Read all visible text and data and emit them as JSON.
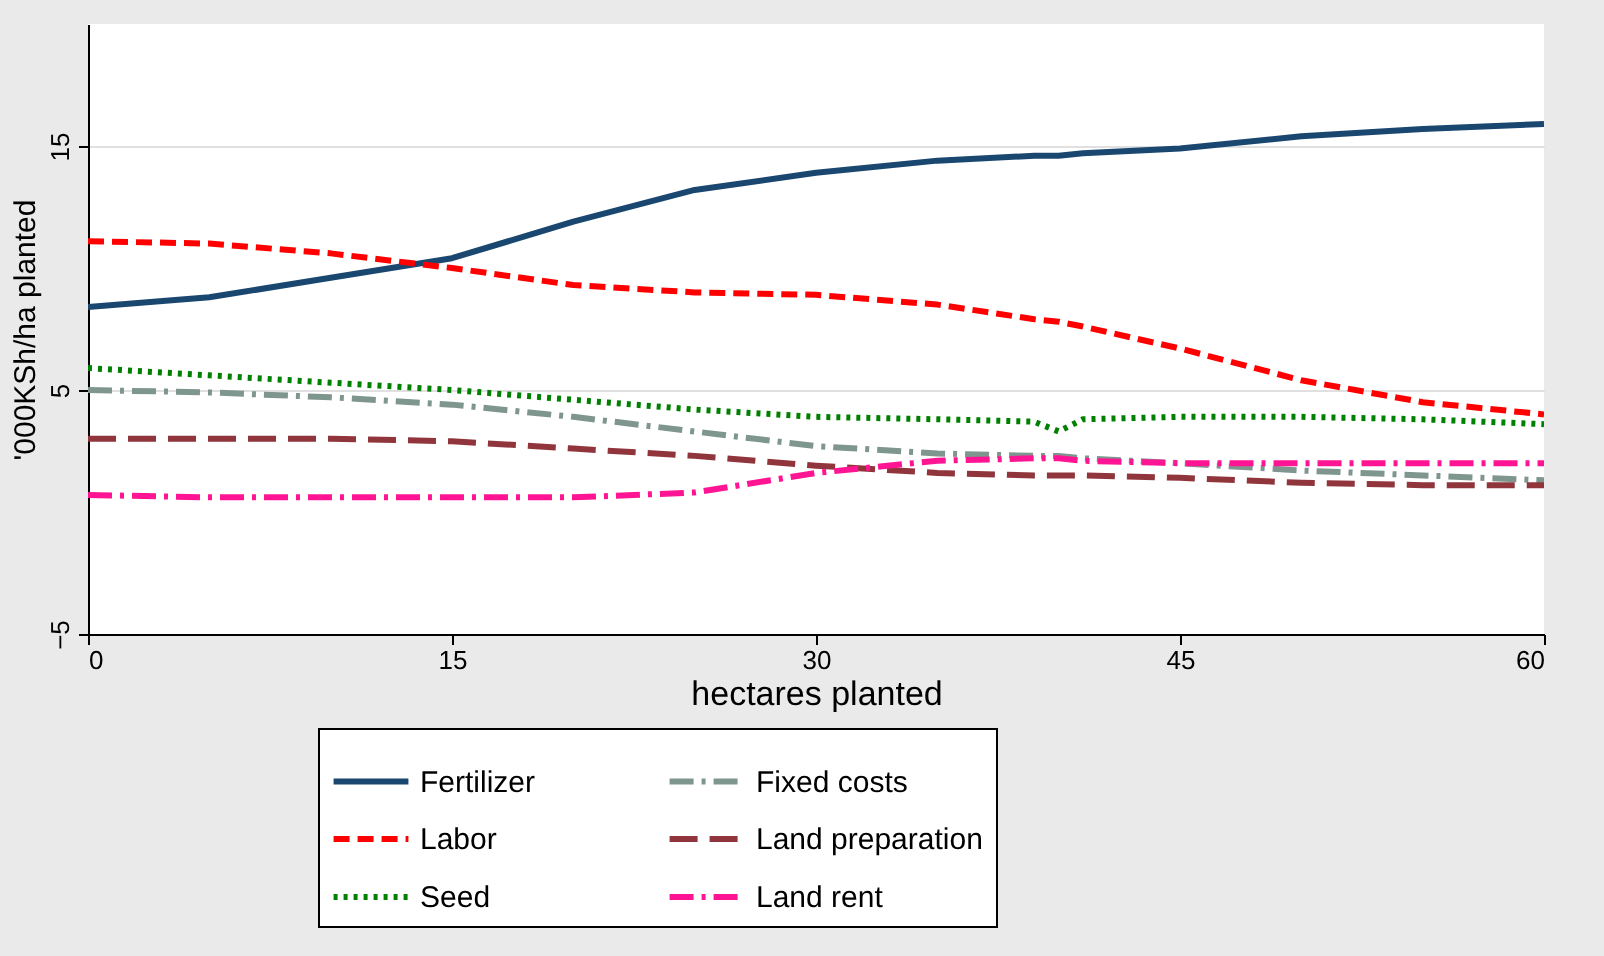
{
  "chart_data": {
    "type": "line",
    "xlabel": "hectares planted",
    "ylabel": "'000KSh/ha planted",
    "x": [
      0,
      5,
      10,
      15,
      20,
      25,
      30,
      35,
      39,
      40,
      41,
      45,
      50,
      55,
      60
    ],
    "series": [
      {
        "name": "Fertilizer",
        "color": "#1a476f",
        "line_style": "solid",
        "values": [
          8.4,
          8.8,
          9.6,
          10.4,
          11.9,
          13.2,
          13.9,
          14.4,
          14.6,
          14.6,
          14.7,
          14.9,
          15.4,
          15.7,
          15.9
        ]
      },
      {
        "name": "Labor",
        "color": "#ff0000",
        "line_style": "dashed",
        "values": [
          11.1,
          11.0,
          10.6,
          10.0,
          9.3,
          9.0,
          8.9,
          8.5,
          7.9,
          7.8,
          7.6,
          6.7,
          5.4,
          4.5,
          4.0
        ]
      },
      {
        "name": "Seed",
        "color": "#008000",
        "line_style": "dotted",
        "values": [
          5.9,
          5.6,
          5.3,
          5.0,
          4.6,
          4.2,
          3.9,
          3.8,
          3.7,
          3.3,
          3.8,
          3.9,
          3.9,
          3.8,
          3.6
        ]
      },
      {
        "name": "Fixed costs",
        "color": "#7f968f",
        "line_style": "dashdot",
        "values": [
          5.0,
          4.9,
          4.7,
          4.4,
          3.9,
          3.3,
          2.7,
          2.4,
          2.3,
          2.3,
          2.2,
          2.0,
          1.7,
          1.5,
          1.3
        ]
      },
      {
        "name": "Land preparation",
        "color": "#90353b",
        "line_style": "longdash",
        "values": [
          3.0,
          3.0,
          3.0,
          2.9,
          2.6,
          2.3,
          1.9,
          1.6,
          1.5,
          1.5,
          1.5,
          1.4,
          1.2,
          1.1,
          1.1
        ]
      },
      {
        "name": "Land rent",
        "color": "#ff1493",
        "line_style": "dashdot",
        "values": [
          0.7,
          0.6,
          0.6,
          0.6,
          0.6,
          0.8,
          1.6,
          2.1,
          2.2,
          2.2,
          2.1,
          2.0,
          2.0,
          2.0,
          2.0
        ]
      }
    ],
    "xlim": [
      0,
      60
    ],
    "xticks": [
      0,
      15,
      30,
      45,
      60
    ],
    "ylim": [
      -5,
      20
    ],
    "yticks": [
      -5,
      5,
      15
    ],
    "grid": "y",
    "legend": "bottom"
  }
}
